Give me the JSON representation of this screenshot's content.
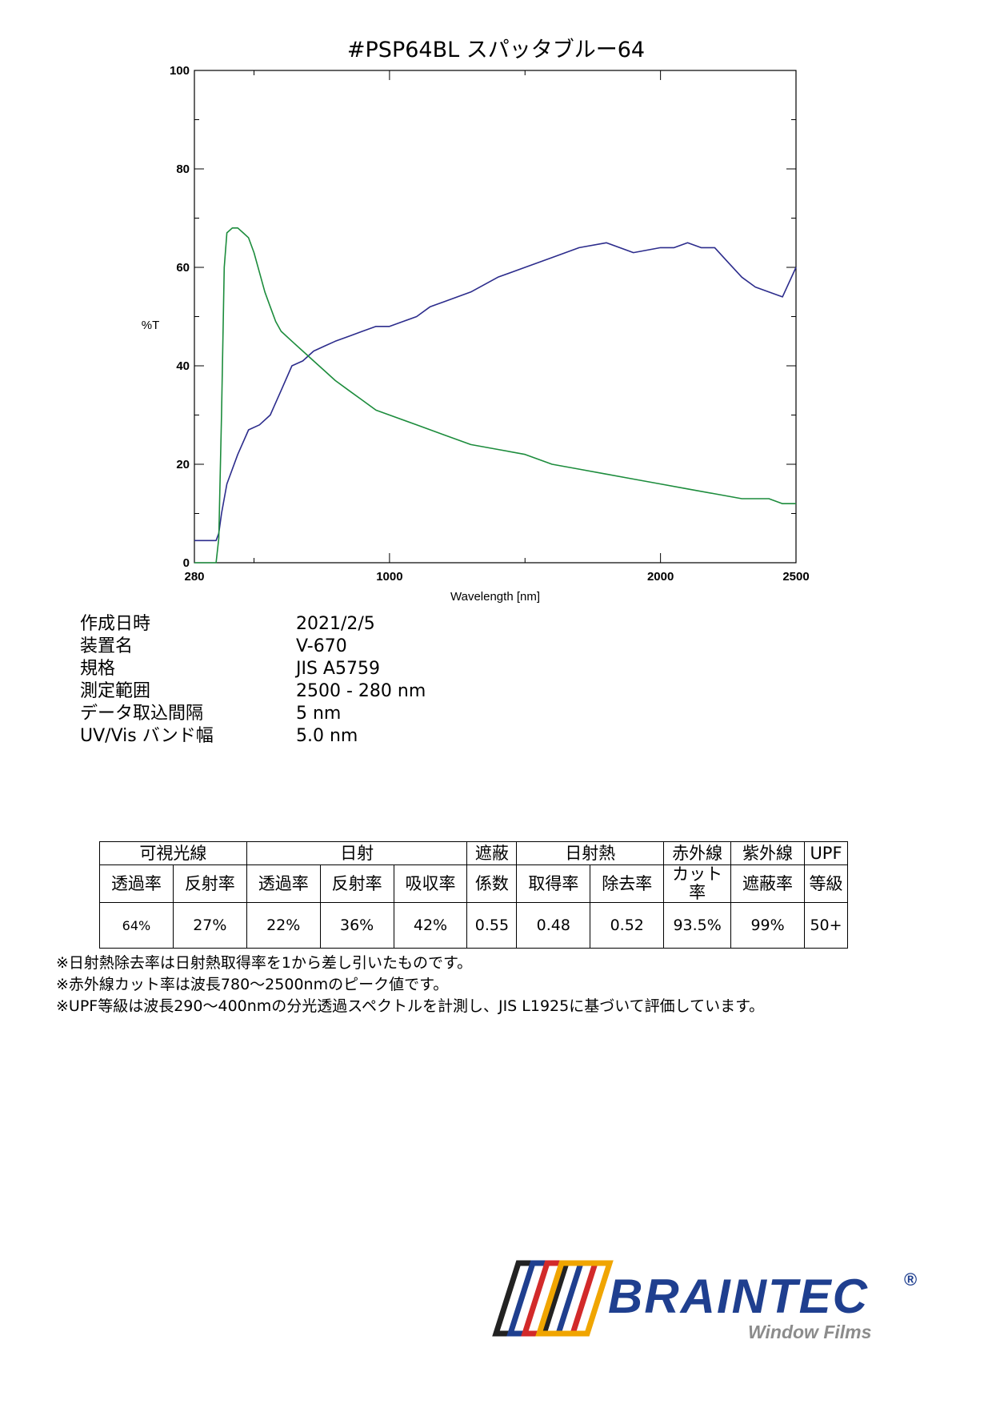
{
  "title": "#PSP64BL  スパッタブルー64",
  "chart_data": {
    "type": "line",
    "xlabel": "Wavelength [nm]",
    "ylabel": "%T",
    "xlim": [
      280,
      2500
    ],
    "ylim": [
      0,
      100
    ],
    "x_ticks": [
      280,
      1000,
      2000,
      2500
    ],
    "y_ticks": [
      0,
      20,
      40,
      60,
      80,
      100
    ],
    "grid": false,
    "series": [
      {
        "color": "#2c2c8c",
        "x": [
          280,
          360,
          370,
          380,
          400,
          440,
          480,
          520,
          560,
          600,
          640,
          680,
          720,
          760,
          800,
          850,
          900,
          950,
          1000,
          1050,
          1100,
          1150,
          1200,
          1300,
          1400,
          1500,
          1600,
          1700,
          1800,
          1900,
          2000,
          2050,
          2100,
          2150,
          2200,
          2250,
          2300,
          2350,
          2400,
          2450,
          2500
        ],
        "y": [
          4.5,
          4.5,
          6,
          10,
          16,
          22,
          27,
          28,
          30,
          35,
          40,
          41,
          43,
          44,
          45,
          46,
          47,
          48,
          48,
          49,
          50,
          52,
          53,
          55,
          58,
          60,
          62,
          64,
          65,
          63,
          64,
          64,
          65,
          64,
          64,
          61,
          58,
          56,
          55,
          54,
          60
        ]
      },
      {
        "color": "#1c8c3c",
        "x": [
          280,
          360,
          370,
          380,
          390,
          400,
          420,
          440,
          460,
          480,
          500,
          520,
          540,
          560,
          580,
          600,
          640,
          680,
          720,
          760,
          800,
          850,
          900,
          950,
          1000,
          1100,
          1200,
          1300,
          1400,
          1500,
          1600,
          1700,
          1800,
          1900,
          2000,
          2100,
          2200,
          2300,
          2400,
          2450,
          2500
        ],
        "y": [
          0,
          0,
          5,
          30,
          60,
          67,
          68,
          68,
          67,
          66,
          63,
          59,
          55,
          52,
          49,
          47,
          45,
          43,
          41,
          39,
          37,
          35,
          33,
          31,
          30,
          28,
          26,
          24,
          23,
          22,
          20,
          19,
          18,
          17,
          16,
          15,
          14,
          13,
          13,
          12,
          12
        ]
      }
    ]
  },
  "meta": [
    {
      "key": "作成日時",
      "value": "2021/2/5"
    },
    {
      "key": "装置名",
      "value": "V-670"
    },
    {
      "key": "規格",
      "value": "JIS A5759"
    },
    {
      "key": "測定範囲",
      "value": "2500 - 280 nm"
    },
    {
      "key": "データ取込間隔",
      "value": "5 nm"
    },
    {
      "key": "UV/Vis バンド幅",
      "value": "5.0 nm"
    }
  ],
  "table": {
    "h1": [
      "可視光線",
      "日射",
      "遮蔽",
      "日射熱",
      "赤外線",
      "紫外線",
      "UPF"
    ],
    "h2": [
      "透過率",
      "反射率",
      "透過率",
      "反射率",
      "吸収率",
      "係数",
      "取得率",
      "除去率",
      "カット率",
      "遮蔽率",
      "等級"
    ],
    "values": [
      "64%",
      "27%",
      "22%",
      "36%",
      "42%",
      "0.55",
      "0.48",
      "0.52",
      "93.5%",
      "99%",
      "50+"
    ]
  },
  "notes": [
    "※日射熱除去率は日射熱取得率を1から差し引いたものです。",
    "※赤外線カット率は波長780～2500nmのピーク値です。",
    "※UPF等級は波長290～400nmの分光透過スペクトルを計測し、JIS L1925に基づいて評価しています。"
  ],
  "logo": {
    "name": "BRAINTEC",
    "registered": "®",
    "subtitle": "Window Films",
    "brand_color": "#1f3f8f",
    "subtitle_color": "#8c8c8c",
    "frame_colors": [
      "#222222",
      "#1f3f8f",
      "#d22a2a",
      "#f0a500"
    ]
  }
}
